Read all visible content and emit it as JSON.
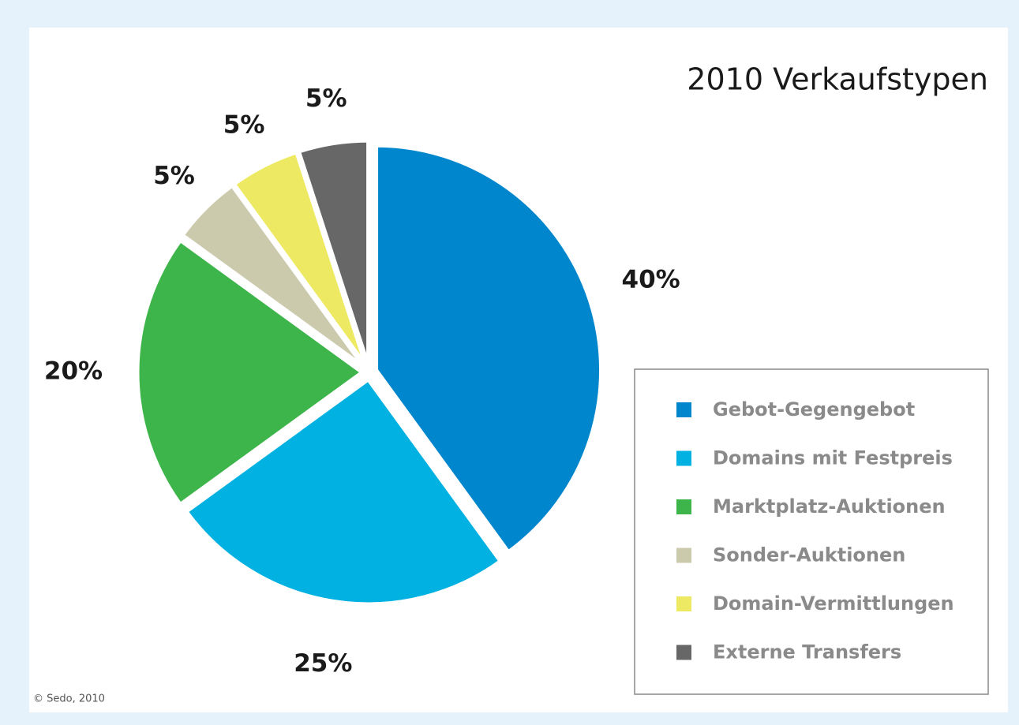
{
  "chart_data": {
    "type": "pie",
    "title": "2010 Verkaufstypen",
    "categories": [
      "Gebot-Gegengebot",
      "Domains mit Festpreis",
      "Marktplatz-Auktionen",
      "Sonder-Auktionen",
      "Domain-Vermittlungen",
      "Externe Transfers"
    ],
    "values": [
      40,
      25,
      20,
      5,
      5,
      5
    ],
    "value_labels": [
      "40%",
      "25%",
      "20%",
      "5%",
      "5%",
      "5%"
    ],
    "colors": [
      "#0086cc",
      "#00b1e1",
      "#3db54a",
      "#cccaad",
      "#ede963",
      "#666766"
    ],
    "legend": "right",
    "source": "© Sedo, 2010"
  }
}
